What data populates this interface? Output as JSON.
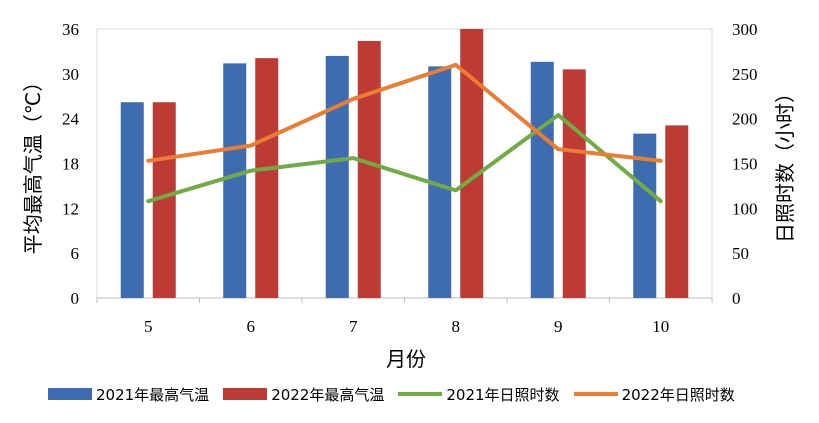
{
  "chart_data": {
    "type": "bar+line",
    "categories": [
      "5",
      "6",
      "7",
      "8",
      "9",
      "10"
    ],
    "xlabel": "月份",
    "ylabel_left": "平均最高气温（℃）",
    "ylabel_right": "日照时数（小时）",
    "ylim_left": [
      0,
      36
    ],
    "yticks_left": [
      "0",
      "6",
      "12",
      "18",
      "24",
      "30",
      "36"
    ],
    "ylim_right": [
      0,
      300
    ],
    "yticks_right": [
      "0",
      "50",
      "100",
      "150",
      "200",
      "250",
      "300"
    ],
    "grid": "horizontal none",
    "legend_position": "bottom",
    "bar_series": [
      {
        "name": "2021年最高气温",
        "color": "#3d6db0",
        "values": [
          26.2,
          31.4,
          32.4,
          31.0,
          31.6,
          22.0
        ]
      },
      {
        "name": "2022年最高气温",
        "color": "#bd3b34",
        "values": [
          26.2,
          32.1,
          34.4,
          36.0,
          30.6,
          23.1
        ]
      }
    ],
    "line_series": [
      {
        "name": "2021年日照时数",
        "color": "#71ab45",
        "values": [
          108,
          142,
          156,
          120,
          204,
          108
        ]
      },
      {
        "name": "2022年日照时数",
        "color": "#ec7c31",
        "values": [
          153,
          170,
          222,
          260,
          166,
          153
        ]
      }
    ]
  }
}
